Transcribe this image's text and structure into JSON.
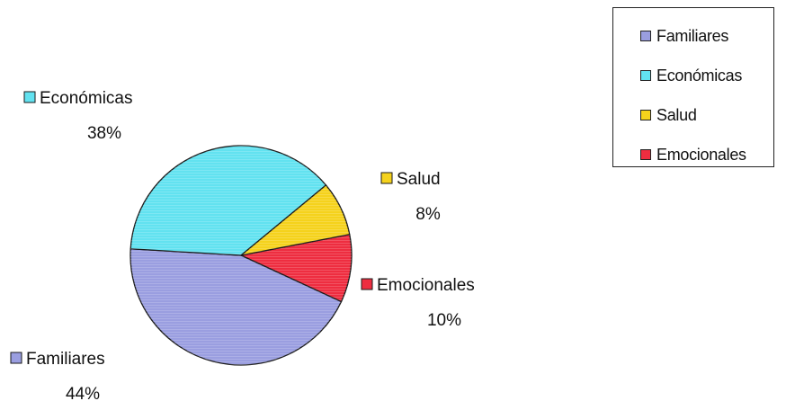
{
  "chart_data": {
    "type": "pie",
    "title": "",
    "slices": [
      {
        "label": "Familiares",
        "value": 44,
        "pct_label": "44%",
        "color": "#9a9ee0"
      },
      {
        "label": "Económicas",
        "value": 38,
        "pct_label": "38%",
        "color": "#62e2f0"
      },
      {
        "label": "Salud",
        "value": 8,
        "pct_label": "8%",
        "color": "#f5d21c"
      },
      {
        "label": "Emocionales",
        "value": 10,
        "pct_label": "10%",
        "color": "#ee2d40"
      }
    ],
    "legend": {
      "placement": "top-right",
      "items": [
        "Familiares",
        "Económicas",
        "Salud",
        "Emocionales"
      ]
    }
  }
}
